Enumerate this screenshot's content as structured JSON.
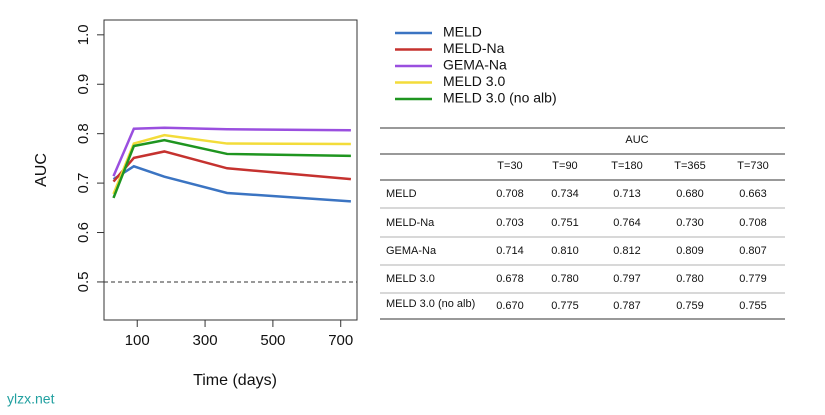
{
  "chart_data": {
    "type": "line",
    "x": [
      30,
      90,
      180,
      365,
      730
    ],
    "series": [
      {
        "name": "MELD",
        "color": "#3b74c2",
        "values": [
          0.708,
          0.734,
          0.713,
          0.68,
          0.663
        ]
      },
      {
        "name": "MELD-Na",
        "color": "#c5322f",
        "values": [
          0.703,
          0.751,
          0.764,
          0.73,
          0.708
        ]
      },
      {
        "name": "GEMA-Na",
        "color": "#9a4fdf",
        "values": [
          0.714,
          0.81,
          0.812,
          0.809,
          0.807
        ]
      },
      {
        "name": "MELD 3.0",
        "color": "#f3dc3a",
        "values": [
          0.678,
          0.78,
          0.797,
          0.78,
          0.779
        ]
      },
      {
        "name": "MELD 3.0 (no alb)",
        "color": "#1f9520",
        "values": [
          0.67,
          0.775,
          0.787,
          0.759,
          0.755
        ]
      }
    ],
    "xlabel": "Time (days)",
    "ylabel": "AUC",
    "xlim": [
      2,
      748
    ],
    "ylim": [
      0.423,
      1.03
    ],
    "xticks": [
      100,
      300,
      500,
      700
    ],
    "yticks": [
      0.5,
      0.6,
      0.7,
      0.8,
      0.9,
      {
        "value": 1.0,
        "label": "1.0"
      }
    ],
    "hline": 0.5,
    "legend": "top-right"
  },
  "table": {
    "title": "AUC",
    "columns": [
      "T=30",
      "T=90",
      "T=180",
      "T=365",
      "T=730"
    ],
    "rows": [
      {
        "label": "MELD",
        "cells": [
          "0.708",
          "0.734",
          "0.713",
          "0.680",
          "0.663"
        ]
      },
      {
        "label": "MELD-Na",
        "cells": [
          "0.703",
          "0.751",
          "0.764",
          "0.730",
          "0.708"
        ]
      },
      {
        "label": "GEMA-Na",
        "cells": [
          "0.714",
          "0.810",
          "0.812",
          "0.809",
          "0.807"
        ]
      },
      {
        "label": "MELD 3.0",
        "cells": [
          "0.678",
          "0.780",
          "0.797",
          "0.780",
          "0.779"
        ]
      },
      {
        "label": "MELD 3.0 (no alb)",
        "cells": [
          "0.670",
          "0.775",
          "0.787",
          "0.759",
          "0.755"
        ]
      }
    ]
  },
  "watermark": "ylzx.net"
}
